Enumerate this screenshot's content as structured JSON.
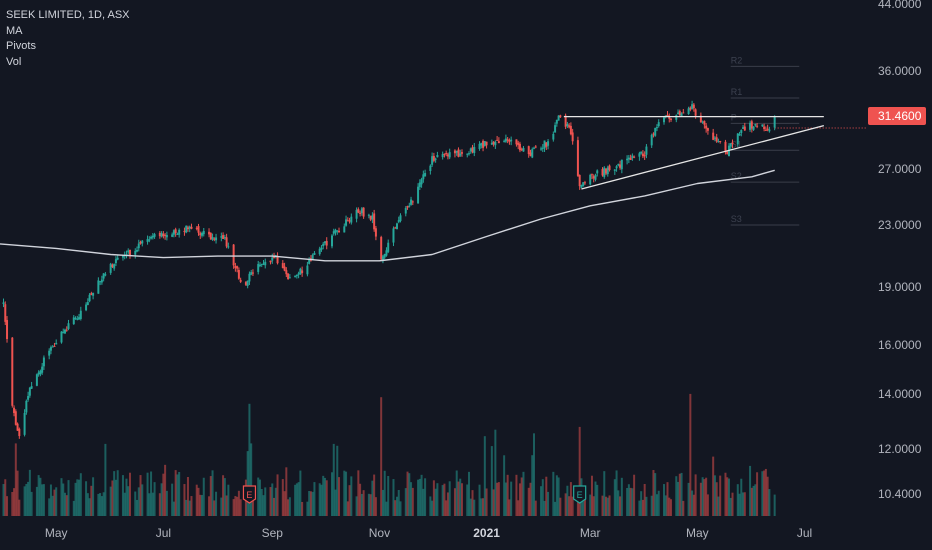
{
  "legend": {
    "title": "SEEK LIMITED, 1D, ASX",
    "indicators": [
      "MA",
      "Pivots",
      "Vol"
    ]
  },
  "colors": {
    "background": "#131722",
    "up": "#26a69a",
    "down": "#ef5350",
    "ma": "#d1d4dc",
    "trendline": "#e6e6e6",
    "price_label_bg": "#ef5350",
    "pivot_line": "#3a3e4a",
    "text": "#b2b5be"
  },
  "chart_data": {
    "type": "candlestick",
    "symbol": "SEEK LIMITED",
    "interval": "1D",
    "exchange": "ASX",
    "scale": "log",
    "y_ticks": [
      "44.0000",
      "36.0000",
      "31.4600",
      "27.0000",
      "23.0000",
      "19.0000",
      "16.0000",
      "14.0000",
      "12.0000",
      "10.4000"
    ],
    "x_ticks": [
      "May",
      "Jul",
      "Sep",
      "Nov",
      "2021",
      "Mar",
      "May",
      "Jul"
    ],
    "last_price": "31.4600",
    "pivot_labels": [
      "R2",
      "R1",
      "P",
      "S1",
      "S2",
      "S3"
    ],
    "earnings_markers": [
      "E",
      "E"
    ],
    "price_path": [
      [
        "2020-04-01",
        18.0
      ],
      [
        "2020-04-06",
        13.5
      ],
      [
        "2020-04-10",
        12.4
      ],
      [
        "2020-04-16",
        14.2
      ],
      [
        "2020-04-23",
        15.2
      ],
      [
        "2020-05-01",
        16.2
      ],
      [
        "2020-05-15",
        17.6
      ],
      [
        "2020-05-25",
        19.2
      ],
      [
        "2020-06-05",
        20.8
      ],
      [
        "2020-06-15",
        21.3
      ],
      [
        "2020-06-20",
        22.2
      ],
      [
        "2020-07-01",
        22.3
      ],
      [
        "2020-07-15",
        22.8
      ],
      [
        "2020-07-25",
        22.3
      ],
      [
        "2020-08-05",
        22.0
      ],
      [
        "2020-08-15",
        19.0
      ],
      [
        "2020-08-25",
        20.5
      ],
      [
        "2020-09-03",
        20.8
      ],
      [
        "2020-09-12",
        19.3
      ],
      [
        "2020-09-22",
        20.5
      ],
      [
        "2020-10-05",
        22.2
      ],
      [
        "2020-10-20",
        24.0
      ],
      [
        "2020-10-28",
        23.5
      ],
      [
        "2020-11-02",
        20.7
      ],
      [
        "2020-11-10",
        22.8
      ],
      [
        "2020-11-20",
        24.8
      ],
      [
        "2020-12-01",
        27.8
      ],
      [
        "2020-12-15",
        28.2
      ],
      [
        "2021-01-01",
        29.0
      ],
      [
        "2021-01-15",
        29.4
      ],
      [
        "2021-01-25",
        28.1
      ],
      [
        "2021-02-05",
        29.2
      ],
      [
        "2021-02-12",
        31.5
      ],
      [
        "2021-02-18",
        30.0
      ],
      [
        "2021-02-23",
        25.8
      ],
      [
        "2021-03-05",
        26.6
      ],
      [
        "2021-03-20",
        27.5
      ],
      [
        "2021-04-01",
        28.2
      ],
      [
        "2021-04-10",
        31.2
      ],
      [
        "2021-04-20",
        31.5
      ],
      [
        "2021-04-28",
        32.3
      ],
      [
        "2021-05-08",
        29.8
      ],
      [
        "2021-05-18",
        28.4
      ],
      [
        "2021-05-28",
        30.5
      ],
      [
        "2021-06-05",
        30.8
      ],
      [
        "2021-06-10",
        30.2
      ],
      [
        "2021-06-14",
        31.46
      ]
    ],
    "ma_path": [
      [
        "2020-04-01",
        21.7
      ],
      [
        "2020-05-01",
        21.4
      ],
      [
        "2020-06-01",
        21.0
      ],
      [
        "2020-07-01",
        20.8
      ],
      [
        "2020-08-01",
        20.9
      ],
      [
        "2020-09-01",
        20.9
      ],
      [
        "2020-10-01",
        20.6
      ],
      [
        "2020-11-01",
        20.6
      ],
      [
        "2020-12-01",
        21.0
      ],
      [
        "2021-01-01",
        22.2
      ],
      [
        "2021-02-01",
        23.4
      ],
      [
        "2021-03-01",
        24.3
      ],
      [
        "2021-04-01",
        25.0
      ],
      [
        "2021-05-01",
        25.9
      ],
      [
        "2021-06-01",
        26.4
      ],
      [
        "2021-06-14",
        26.9
      ]
    ],
    "trendlines": [
      {
        "from": [
          "2021-02-14",
          31.4
        ],
        "to": [
          "2021-07-12",
          31.4
        ]
      },
      {
        "from": [
          "2021-02-24",
          25.5
        ],
        "to": [
          "2021-07-12",
          30.6
        ]
      }
    ],
    "pivots": {
      "R2": 36.5,
      "R1": 33.2,
      "P": 30.8,
      "S1": 28.5,
      "S2": 26.0,
      "S3": 23.0
    },
    "pivot_span": [
      "2021-05-20",
      "2021-06-28"
    ]
  }
}
